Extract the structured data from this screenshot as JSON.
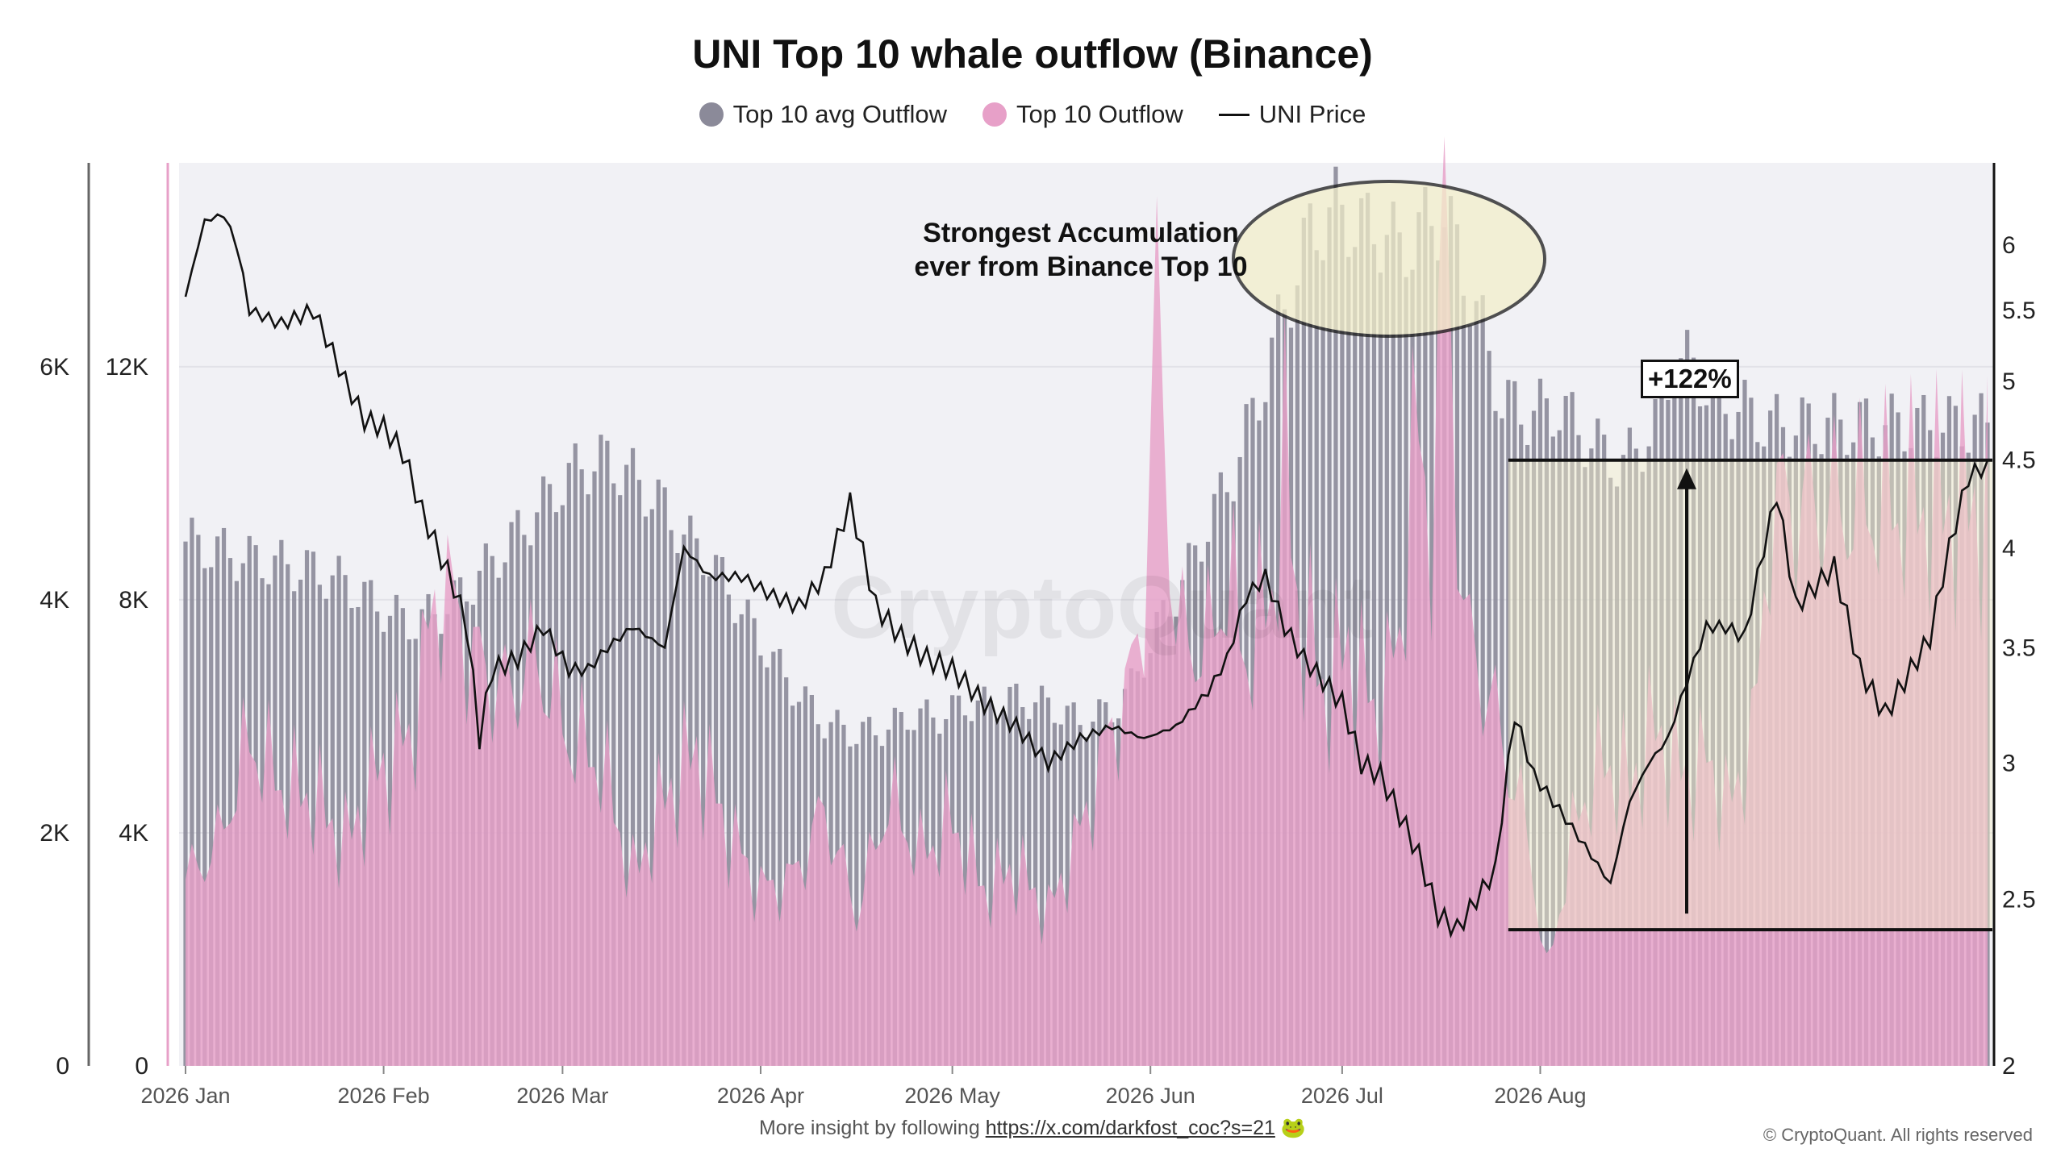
{
  "title": "UNI Top 10 whale outflow (Binance)",
  "legend": {
    "avg": "Top 10 avg Outflow",
    "outflow": "Top 10 Outflow",
    "price": "UNI Price"
  },
  "annotation": "Strongest Accumulation ever from Binance Top 10",
  "annotation_line1": "Strongest Accumulation",
  "annotation_line2": "ever from Binance Top 10",
  "gain_label": "+122%",
  "watermark": "CryptoQuant",
  "footer": {
    "text": "More insight by following",
    "link": "https://x.com/darkfost_coc?s=21",
    "emoji": "🐸",
    "copyright": "© CryptoQuant. All rights reserved"
  },
  "colors": {
    "avg": "#8b8a99",
    "outflow": "#e7a0c8",
    "price": "#111111",
    "highlight": "#f3efc9",
    "plot_bg": "#f1f1f5"
  },
  "chart_data": {
    "type": "bar",
    "x_ticks": [
      "2026 Jan",
      "2026 Feb",
      "2026 Mar",
      "2026 Apr",
      "2026 May",
      "2026 Jun",
      "2026 Jul",
      "2026 Aug"
    ],
    "left_axis_outer": {
      "ticks": [
        "0",
        "2K",
        "4K",
        "6K"
      ],
      "values": [
        0,
        2000,
        4000,
        6000
      ]
    },
    "left_axis_inner": {
      "ticks": [
        "0",
        "4K",
        "8K",
        "12K"
      ],
      "values": [
        0,
        4000,
        8000,
        12000
      ]
    },
    "right_axis": {
      "ticks": [
        "2",
        "2.5",
        "3",
        "3.5",
        "4",
        "4.5",
        "5",
        "5.5",
        "6"
      ],
      "values": [
        2,
        2.5,
        3,
        3.5,
        4,
        4.5,
        5,
        5.5,
        6
      ],
      "scale": "log"
    },
    "series": [
      {
        "name": "Top 10 avg Outflow",
        "kind": "bar",
        "points": [
          [
            0,
            9000
          ],
          [
            10,
            8700
          ],
          [
            20,
            8500
          ],
          [
            25,
            8300
          ],
          [
            30,
            7900
          ],
          [
            35,
            7600
          ],
          [
            40,
            7800
          ],
          [
            45,
            8300
          ],
          [
            50,
            8900
          ],
          [
            54,
            9400
          ],
          [
            58,
            9900
          ],
          [
            62,
            10300
          ],
          [
            66,
            10400
          ],
          [
            70,
            10100
          ],
          [
            74,
            9700
          ],
          [
            78,
            9100
          ],
          [
            82,
            8700
          ],
          [
            86,
            8000
          ],
          [
            90,
            7300
          ],
          [
            95,
            6500
          ],
          [
            100,
            5900
          ],
          [
            105,
            5700
          ],
          [
            110,
            5800
          ],
          [
            113,
            6000
          ],
          [
            118,
            6000
          ],
          [
            122,
            6200
          ],
          [
            125,
            6200
          ],
          [
            130,
            6300
          ],
          [
            135,
            6200
          ],
          [
            140,
            5900
          ],
          [
            145,
            6100
          ],
          [
            148,
            6500
          ],
          [
            152,
            7500
          ],
          [
            156,
            8300
          ],
          [
            160,
            9300
          ],
          [
            164,
            10200
          ],
          [
            168,
            11500
          ],
          [
            172,
            13000
          ],
          [
            176,
            14300
          ],
          [
            180,
            14700
          ],
          [
            184,
            14400
          ],
          [
            188,
            14300
          ],
          [
            190,
            14000
          ],
          [
            195,
            14500
          ],
          [
            197,
            14600
          ],
          [
            199,
            14000
          ],
          [
            203,
            12600
          ],
          [
            206,
            11400
          ],
          [
            210,
            11200
          ],
          [
            215,
            11300
          ],
          [
            220,
            10700
          ],
          [
            225,
            10300
          ],
          [
            230,
            11000
          ],
          [
            233,
            12100
          ],
          [
            236,
            12000
          ],
          [
            240,
            11400
          ],
          [
            245,
            11200
          ],
          [
            248,
            11000
          ]
        ]
      },
      {
        "name": "Top 10 Outflow",
        "kind": "area",
        "points": [
          [
            0,
            1600
          ],
          [
            5,
            1900
          ],
          [
            10,
            2800
          ],
          [
            15,
            2400
          ],
          [
            20,
            2300
          ],
          [
            25,
            1900
          ],
          [
            30,
            2500
          ],
          [
            35,
            2800
          ],
          [
            40,
            4200
          ],
          [
            45,
            3500
          ],
          [
            50,
            3200
          ],
          [
            55,
            3500
          ],
          [
            60,
            2800
          ],
          [
            65,
            2600
          ],
          [
            70,
            1600
          ],
          [
            75,
            2300
          ],
          [
            80,
            2700
          ],
          [
            85,
            2000
          ],
          [
            90,
            1500
          ],
          [
            95,
            1600
          ],
          [
            100,
            2200
          ],
          [
            105,
            1300
          ],
          [
            110,
            2300
          ],
          [
            115,
            1800
          ],
          [
            120,
            2100
          ],
          [
            125,
            1500
          ],
          [
            130,
            1700
          ],
          [
            135,
            1300
          ],
          [
            140,
            2000
          ],
          [
            145,
            2900
          ],
          [
            148,
            3300
          ],
          [
            150,
            4000
          ],
          [
            152,
            6600
          ],
          [
            155,
            3700
          ],
          [
            160,
            3600
          ],
          [
            163,
            4200
          ],
          [
            166,
            3500
          ],
          [
            170,
            4100
          ],
          [
            172,
            5200
          ],
          [
            174,
            4000
          ],
          [
            178,
            3200
          ],
          [
            182,
            3600
          ],
          [
            186,
            3000
          ],
          [
            190,
            3600
          ],
          [
            192,
            5400
          ],
          [
            195,
            4600
          ],
          [
            197,
            7400
          ],
          [
            200,
            3800
          ],
          [
            205,
            3000
          ],
          [
            210,
            2000
          ],
          [
            213,
            800
          ],
          [
            218,
            2200
          ],
          [
            222,
            2600
          ],
          [
            226,
            2400
          ],
          [
            230,
            2900
          ],
          [
            234,
            2500
          ],
          [
            238,
            2600
          ],
          [
            242,
            2200
          ],
          [
            246,
            3100
          ],
          [
            248,
            4800
          ]
        ]
      },
      {
        "name": "UNI Price",
        "kind": "line",
        "points": [
          [
            0,
            5.6
          ],
          [
            3,
            6.2
          ],
          [
            6,
            6.25
          ],
          [
            8,
            6.0
          ],
          [
            10,
            5.5
          ],
          [
            15,
            5.4
          ],
          [
            20,
            5.5
          ],
          [
            25,
            5.0
          ],
          [
            28,
            4.75
          ],
          [
            31,
            4.7
          ],
          [
            34,
            4.55
          ],
          [
            37,
            4.2
          ],
          [
            40,
            3.95
          ],
          [
            42,
            3.8
          ],
          [
            44,
            3.6
          ],
          [
            46,
            3.1
          ],
          [
            48,
            3.4
          ],
          [
            52,
            3.45
          ],
          [
            56,
            3.6
          ],
          [
            60,
            3.4
          ],
          [
            63,
            3.4
          ],
          [
            66,
            3.5
          ],
          [
            70,
            3.6
          ],
          [
            75,
            3.5
          ],
          [
            78,
            4.0
          ],
          [
            82,
            3.85
          ],
          [
            87,
            3.85
          ],
          [
            92,
            3.75
          ],
          [
            96,
            3.7
          ],
          [
            100,
            3.85
          ],
          [
            104,
            4.25
          ],
          [
            108,
            3.7
          ],
          [
            112,
            3.55
          ],
          [
            116,
            3.45
          ],
          [
            120,
            3.4
          ],
          [
            125,
            3.25
          ],
          [
            130,
            3.15
          ],
          [
            135,
            3.0
          ],
          [
            140,
            3.1
          ],
          [
            145,
            3.15
          ],
          [
            150,
            3.1
          ],
          [
            155,
            3.15
          ],
          [
            160,
            3.3
          ],
          [
            163,
            3.45
          ],
          [
            166,
            3.75
          ],
          [
            169,
            3.85
          ],
          [
            172,
            3.6
          ],
          [
            175,
            3.45
          ],
          [
            178,
            3.35
          ],
          [
            181,
            3.25
          ],
          [
            184,
            3.0
          ],
          [
            187,
            2.95
          ],
          [
            190,
            2.8
          ],
          [
            193,
            2.65
          ],
          [
            196,
            2.45
          ],
          [
            199,
            2.4
          ],
          [
            202,
            2.5
          ],
          [
            205,
            2.6
          ],
          [
            208,
            3.2
          ],
          [
            211,
            2.95
          ],
          [
            214,
            2.85
          ],
          [
            217,
            2.75
          ],
          [
            220,
            2.65
          ],
          [
            223,
            2.55
          ],
          [
            226,
            2.85
          ],
          [
            229,
            3.0
          ],
          [
            232,
            3.1
          ],
          [
            235,
            3.35
          ],
          [
            238,
            3.6
          ],
          [
            241,
            3.6
          ],
          [
            244,
            3.55
          ],
          [
            247,
            4.0
          ],
          [
            249,
            4.3
          ],
          [
            252,
            3.7
          ],
          [
            255,
            3.8
          ],
          [
            258,
            3.9
          ],
          [
            262,
            3.4
          ],
          [
            266,
            3.2
          ],
          [
            270,
            3.4
          ],
          [
            273,
            3.55
          ],
          [
            276,
            4.0
          ],
          [
            279,
            4.4
          ],
          [
            281,
            4.45
          ]
        ]
      }
    ]
  }
}
